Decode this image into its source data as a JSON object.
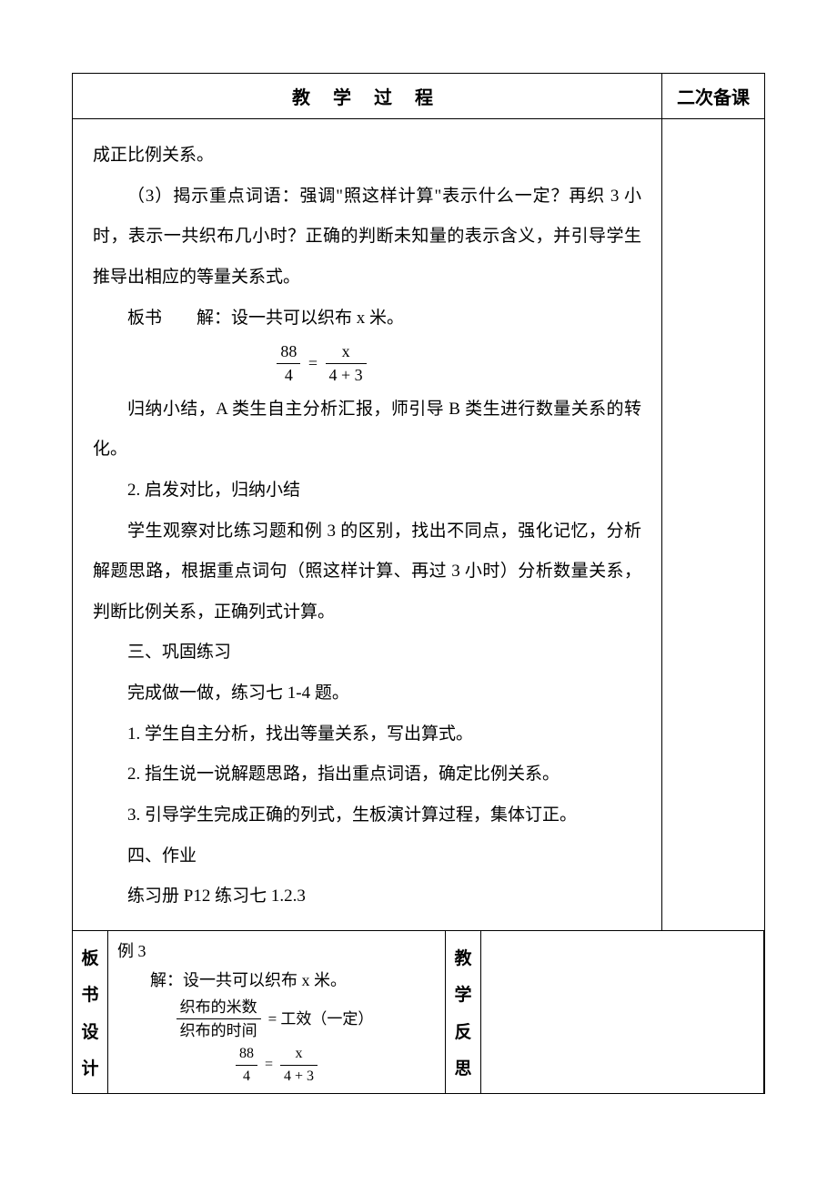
{
  "header": {
    "left": "教 学 过 程",
    "right": "二次备课"
  },
  "body": {
    "p1": "成正比例关系。",
    "p2": "（3）揭示重点词语：强调\"照这样计算\"表示什么一定？再织 3 小时，表示一共织布几小时？正确的判断未知量的表示含义，并引导学生推导出相应的等量关系式。",
    "p3": "板书　　解：设一共可以织布 x 米。",
    "formula1": {
      "n1": "88",
      "d1": "4",
      "n2": "x",
      "d2": "4 + 3"
    },
    "p4": "归纳小结，A 类生自主分析汇报，师引导 B 类生进行数量关系的转化。",
    "p5": "2. 启发对比，归纳小结",
    "p6": "学生观察对比练习题和例 3 的区别，找出不同点，强化记忆，分析解题思路，根据重点词句（照这样计算、再过 3 小时）分析数量关系，判断比例关系，正确列式计算。",
    "p7": "三、巩固练习",
    "p8": "完成做一做，练习七 1-4 题。",
    "p9": "1. 学生自主分析，找出等量关系，写出算式。",
    "p10": "2. 指生说一说解题思路，指出重点词语，确定比例关系。",
    "p11": "3. 引导学生完成正确的列式，生板演计算过程，集体订正。",
    "p12": "四、作业",
    "p13": "练习册 P12 练习七 1.2.3"
  },
  "bottom": {
    "boardLabel": [
      "板",
      "书",
      "设",
      "计"
    ],
    "reflectLabel": [
      "教",
      "学",
      "反",
      "思"
    ],
    "board": {
      "title": "例 3",
      "line1": "解：设一共可以织布 x 米。",
      "formulaA": {
        "num": "织布的米数",
        "den": "织布的时间",
        "rhs": "= 工效（一定）"
      },
      "formulaB": {
        "n1": "88",
        "d1": "4",
        "n2": "x",
        "d2": "4 + 3"
      }
    }
  }
}
